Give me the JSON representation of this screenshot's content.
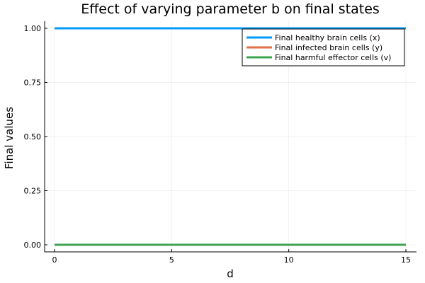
{
  "chart_data": {
    "type": "line",
    "title": "Effect of varying parameter b on final states",
    "xlabel": "d",
    "ylabel": "Final values",
    "xlim": [
      0,
      15
    ],
    "ylim": [
      0,
      1
    ],
    "xticks": [
      0,
      5,
      10,
      15
    ],
    "xtick_labels": [
      "0",
      "5",
      "10",
      "15"
    ],
    "yticks": [
      0,
      0.25,
      0.5,
      0.75,
      1.0
    ],
    "ytick_labels": [
      "0.00",
      "0.25",
      "0.50",
      "0.75",
      "1.00"
    ],
    "grid": true,
    "legend_position": "top-right",
    "x": [
      0,
      15
    ],
    "series": [
      {
        "name": "Final healthy brain cells (x)",
        "values": [
          1.0,
          1.0
        ],
        "color": "#009af9"
      },
      {
        "name": "Final infected brain cells (y)",
        "values": [
          0.0,
          0.0
        ],
        "color": "#e26f46"
      },
      {
        "name": "Final harmful effector cells (v)",
        "values": [
          0.0,
          0.0
        ],
        "color": "#3da44d"
      }
    ]
  }
}
